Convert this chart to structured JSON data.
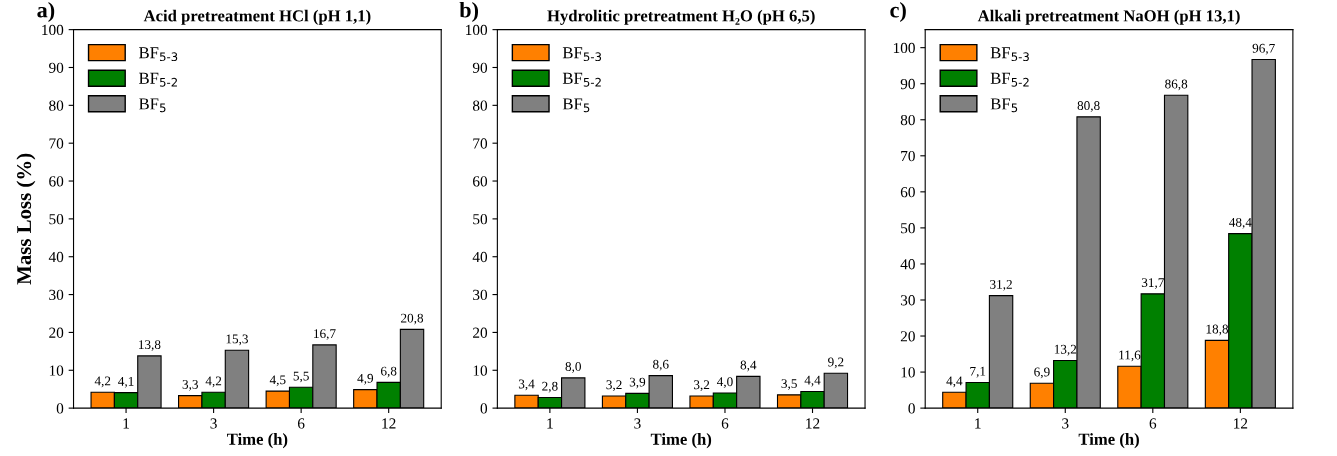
{
  "chart_data": [
    {
      "type": "bar",
      "title": "Acid pretreatment HCl (pH 1,1)",
      "annotations": [
        "a)"
      ],
      "xlabel": "Time (h)",
      "ylabel": "Mass Loss (%)",
      "categories": [
        "1",
        "3",
        "6",
        "12"
      ],
      "ylim": [
        0,
        100
      ],
      "yticks": [
        0,
        10,
        20,
        30,
        40,
        50,
        60,
        70,
        80,
        90,
        100
      ],
      "legend": "top left",
      "grid": false,
      "series": [
        {
          "name": "BF$_{5-3}$",
          "color": "#ff8000",
          "values": [
            4.2,
            3.3,
            4.5,
            4.9
          ],
          "value_labels": [
            "4,2",
            "3,3",
            "4,5",
            "4,9"
          ]
        },
        {
          "name": "BF$_{5-2}$",
          "color": "#008000",
          "values": [
            4.1,
            4.2,
            5.5,
            6.8
          ],
          "value_labels": [
            "4,1",
            "4,2",
            "5,5",
            "6,8"
          ]
        },
        {
          "name": "BF$_{5}$",
          "color": "#808080",
          "values": [
            13.8,
            15.3,
            16.7,
            20.8
          ],
          "value_labels": [
            "13,8",
            "15,3",
            "16,7",
            "20,8"
          ]
        }
      ]
    },
    {
      "type": "bar",
      "title": "Hydrolitic pretreatment H₂O (pH 6,5)",
      "annotations": [
        "b)"
      ],
      "xlabel": "Time (h)",
      "categories": [
        "1",
        "3",
        "6",
        "12"
      ],
      "ylim": [
        0,
        100
      ],
      "yticks": [
        0,
        10,
        20,
        30,
        40,
        50,
        60,
        70,
        80,
        90,
        100
      ],
      "legend": "top left",
      "grid": false,
      "series": [
        {
          "name": "BF$_{5-3}$",
          "color": "#ff8000",
          "values": [
            3.4,
            3.2,
            3.2,
            3.5
          ],
          "value_labels": [
            "3,4",
            "3,2",
            "3,2",
            "3,5"
          ]
        },
        {
          "name": "BF$_{5-2}$",
          "color": "#008000",
          "values": [
            2.8,
            3.9,
            4.0,
            4.4
          ],
          "value_labels": [
            "2,8",
            "3,9",
            "4,0",
            "4,4"
          ]
        },
        {
          "name": "BF$_{5}$",
          "color": "#808080",
          "values": [
            8.0,
            8.6,
            8.4,
            9.2
          ],
          "value_labels": [
            "8,0",
            "8,6",
            "8,4",
            "9,2"
          ]
        }
      ]
    },
    {
      "type": "bar",
      "title": "Alkali pretreatment NaOH (pH 13,1)",
      "annotations": [
        "c)"
      ],
      "xlabel": "Time (h)",
      "categories": [
        "1",
        "3",
        "6",
        "12"
      ],
      "ylim": [
        0,
        105
      ],
      "yticks": [
        0,
        10,
        20,
        30,
        40,
        50,
        60,
        70,
        80,
        90,
        100
      ],
      "legend": "top left",
      "grid": false,
      "series": [
        {
          "name": "BF$_{5-3}$",
          "color": "#ff8000",
          "values": [
            4.4,
            6.9,
            11.6,
            18.8
          ],
          "value_labels": [
            "4,4",
            "6,9",
            "11,6",
            "18,8"
          ]
        },
        {
          "name": "BF$_{5-2}$",
          "color": "#008000",
          "values": [
            7.1,
            13.2,
            31.7,
            48.4
          ],
          "value_labels": [
            "7,1",
            "13,2",
            "31,7",
            "48,4"
          ]
        },
        {
          "name": "BF$_{5}$",
          "color": "#808080",
          "values": [
            31.2,
            80.8,
            86.8,
            96.7
          ],
          "value_labels": [
            "31,2",
            "80,8",
            "86,8",
            "96,7"
          ]
        }
      ]
    }
  ]
}
